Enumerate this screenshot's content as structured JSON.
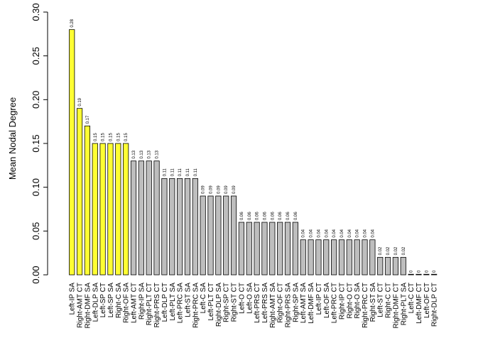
{
  "chart_data": {
    "type": "bar",
    "ylabel": "Mean Nodal Degree",
    "xlabel": "",
    "ylim": [
      0,
      0.3
    ],
    "yticks": [
      "0.00",
      "0.05",
      "0.10",
      "0.15",
      "0.20",
      "0.25",
      "0.30"
    ],
    "categories": [
      "Left-IP SA",
      "Right-AMT CT",
      "Right-DMF SA",
      "Left-DLP SA",
      "Left-SP CT",
      "Left-SP SA",
      "Right-C SA",
      "Right-OF SA",
      "Left-AMT CT",
      "Right-IP SA",
      "Right-PLT CT",
      "Right-PRS CT",
      "Left-DLP CT",
      "Left-PLT SA",
      "Left-PRC SA",
      "Left-ST SA",
      "Right-PRC SA",
      "Left-C SA",
      "Left-PLT CT",
      "Right-DLP SA",
      "Right-SP CT",
      "Right-ST CT",
      "Left-O CT",
      "Left-O SA",
      "Left-PRS CT",
      "Left-PRS SA",
      "Right-AMT SA",
      "Right-OF CT",
      "Right-PRS SA",
      "Right-SP SA",
      "Left-AMT SA",
      "Left-DMF SA",
      "Left-IP CT",
      "Left-OF SA",
      "Left-PRC CT",
      "Right-IP CT",
      "Right-O CT",
      "Right-O SA",
      "Right-PRC CT",
      "Right-ST SA",
      "Left-ST CT",
      "Right-C CT",
      "Right-DMF CT",
      "Right-PLT SA",
      "Left-C CT",
      "Left-DMF CT",
      "Left-OF CT",
      "Right-DLP CT"
    ],
    "values": [
      0.28,
      0.19,
      0.17,
      0.15,
      0.15,
      0.15,
      0.15,
      0.15,
      0.13,
      0.13,
      0.13,
      0.13,
      0.11,
      0.11,
      0.11,
      0.11,
      0.11,
      0.09,
      0.09,
      0.09,
      0.09,
      0.09,
      0.06,
      0.06,
      0.06,
      0.06,
      0.06,
      0.06,
      0.06,
      0.06,
      0.04,
      0.04,
      0.04,
      0.04,
      0.04,
      0.04,
      0.04,
      0.04,
      0.04,
      0.04,
      0.02,
      0.02,
      0.02,
      0.02,
      0,
      0,
      0,
      0
    ],
    "data_labels": [
      "0.28",
      "0.19",
      "0.17",
      "0.15",
      "0.15",
      "0.15",
      "0.15",
      "0.15",
      "0.13",
      "0.13",
      "0.13",
      "0.13",
      "0.11",
      "0.11",
      "0.11",
      "0.11",
      "0.11",
      "0.09",
      "0.09",
      "0.09",
      "0.09",
      "0.09",
      "0.06",
      "0.06",
      "0.06",
      "0.06",
      "0.06",
      "0.06",
      "0.06",
      "0.06",
      "0.04",
      "0.04",
      "0.04",
      "0.04",
      "0.04",
      "0.04",
      "0.04",
      "0.04",
      "0.04",
      "0.04",
      "0.02",
      "0.02",
      "0.02",
      "0.02",
      "0",
      "0",
      "0",
      "0"
    ],
    "highlighted_count": 8,
    "colors": {
      "highlight": "#ffff33",
      "default": "#bebebe",
      "stroke": "#000000"
    },
    "grid": false
  }
}
